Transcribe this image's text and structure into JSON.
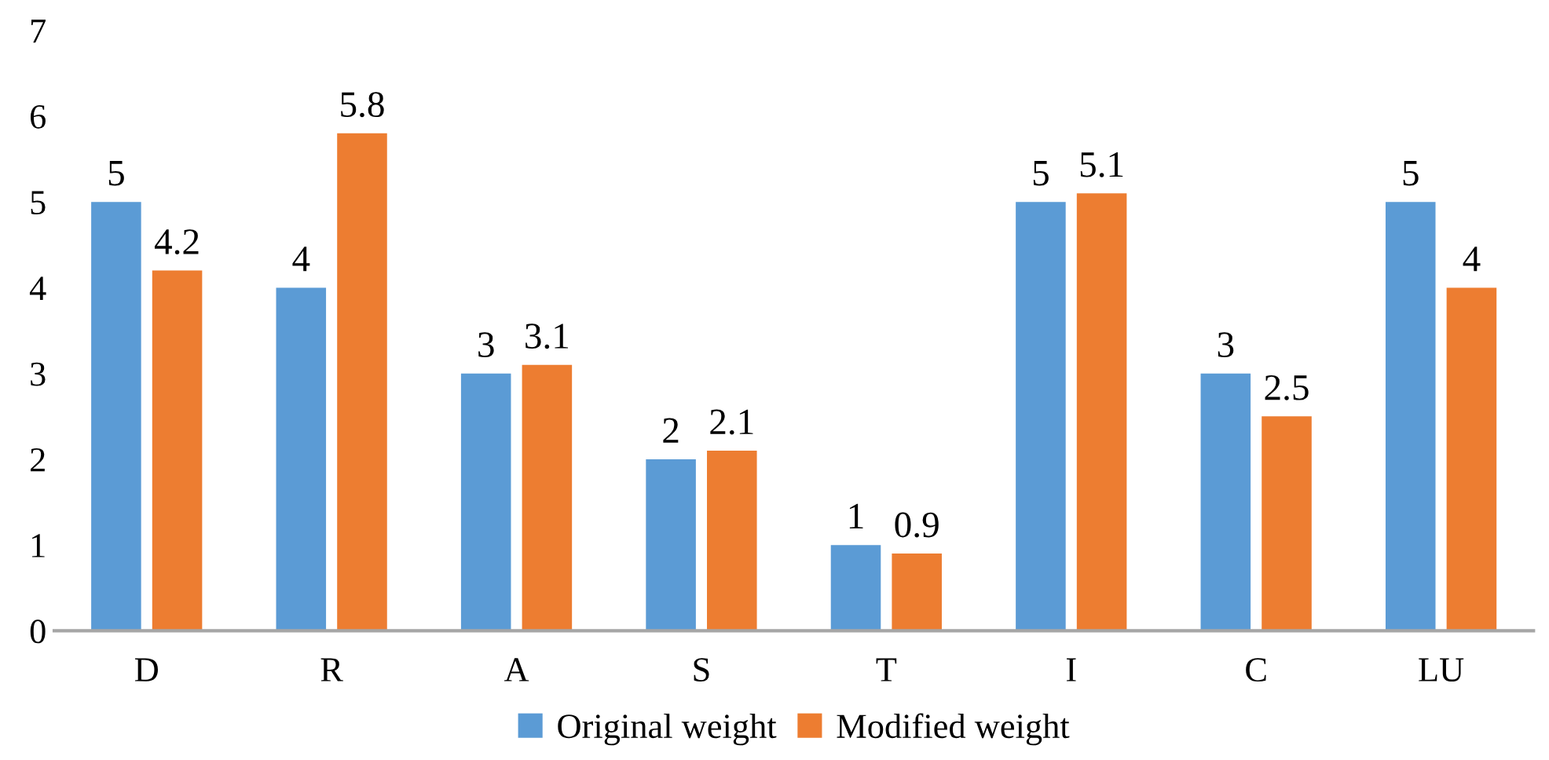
{
  "chart_data": {
    "type": "bar",
    "categories": [
      "D",
      "R",
      "A",
      "S",
      "T",
      "I",
      "C",
      "LU"
    ],
    "series": [
      {
        "name": "Original weight",
        "color": "#5b9bd5",
        "values": [
          5,
          4,
          3,
          2,
          1,
          5,
          3,
          5
        ]
      },
      {
        "name": "Modified weight",
        "color": "#ed7d31",
        "values": [
          4.2,
          5.8,
          3.1,
          2.1,
          0.9,
          5.1,
          2.5,
          4
        ]
      }
    ],
    "ylim": [
      0,
      7
    ],
    "yticks": [
      0,
      1,
      2,
      3,
      4,
      5,
      6,
      7
    ],
    "grid": false,
    "legend": "bottom",
    "data_labels": true
  }
}
